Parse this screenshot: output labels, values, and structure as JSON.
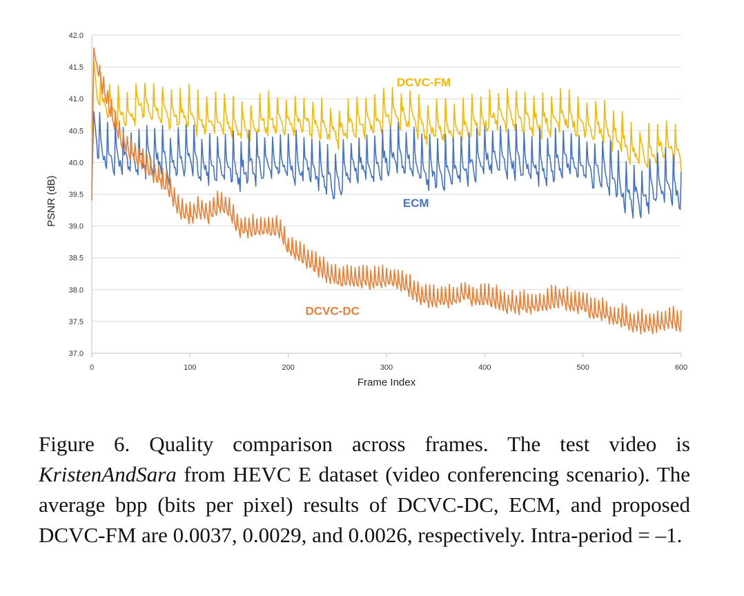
{
  "chart_data": {
    "type": "line",
    "title": "",
    "xlabel": "Frame Index",
    "ylabel": "PSNR (dB)",
    "xlim": [
      0,
      600
    ],
    "ylim": [
      37.0,
      42.0
    ],
    "xticks": [
      0,
      100,
      200,
      300,
      400,
      500,
      600
    ],
    "yticks": [
      "37.0",
      "37.5",
      "38.0",
      "38.5",
      "39.0",
      "39.5",
      "40.0",
      "40.5",
      "41.0",
      "41.5",
      "42.0"
    ],
    "grid": "horizontal",
    "legend": "none (inline series labels)",
    "series": [
      {
        "name": "DCVC-FM",
        "color": "#F5B800",
        "x": [
          0,
          2,
          5,
          10,
          20,
          30,
          40,
          50,
          60,
          70,
          80,
          90,
          100,
          110,
          120,
          130,
          140,
          150,
          160,
          170,
          180,
          190,
          200,
          210,
          220,
          230,
          240,
          250,
          260,
          270,
          280,
          290,
          300,
          310,
          320,
          330,
          340,
          350,
          360,
          370,
          380,
          390,
          400,
          410,
          420,
          430,
          440,
          450,
          460,
          470,
          480,
          490,
          500,
          510,
          520,
          530,
          540,
          550,
          560,
          570,
          580,
          590,
          600
        ],
        "y": [
          40.5,
          41.6,
          41.1,
          40.9,
          40.8,
          40.7,
          40.7,
          40.9,
          40.8,
          40.8,
          40.7,
          40.7,
          40.7,
          40.6,
          40.6,
          40.6,
          40.6,
          40.5,
          40.5,
          40.6,
          40.6,
          40.6,
          40.6,
          40.6,
          40.6,
          40.5,
          40.5,
          40.4,
          40.5,
          40.6,
          40.6,
          40.6,
          40.7,
          40.7,
          40.7,
          40.6,
          40.5,
          40.5,
          40.5,
          40.5,
          40.5,
          40.6,
          40.6,
          40.7,
          40.7,
          40.7,
          40.6,
          40.6,
          40.6,
          40.6,
          40.7,
          40.6,
          40.6,
          40.5,
          40.5,
          40.4,
          40.3,
          40.1,
          40.1,
          40.1,
          40.2,
          40.2,
          40.0
        ],
        "oscillation_amplitude_db": 0.45,
        "period_frames": 9
      },
      {
        "name": "ECM",
        "color": "#4472C4",
        "x": [
          0,
          2,
          5,
          10,
          20,
          30,
          40,
          50,
          60,
          70,
          80,
          90,
          100,
          110,
          120,
          130,
          140,
          150,
          160,
          170,
          180,
          190,
          200,
          210,
          220,
          230,
          240,
          250,
          260,
          270,
          280,
          290,
          300,
          310,
          320,
          330,
          340,
          350,
          360,
          370,
          380,
          390,
          400,
          410,
          420,
          430,
          440,
          450,
          460,
          470,
          480,
          490,
          500,
          510,
          520,
          530,
          540,
          550,
          560,
          570,
          580,
          590,
          600
        ],
        "y": [
          39.6,
          40.8,
          40.3,
          40.1,
          40.0,
          40.0,
          40.0,
          40.0,
          40.0,
          40.0,
          39.9,
          40.0,
          40.0,
          39.9,
          39.9,
          39.9,
          39.9,
          39.8,
          39.9,
          39.9,
          39.9,
          40.0,
          39.9,
          39.9,
          39.9,
          39.8,
          39.7,
          39.6,
          39.8,
          39.9,
          39.9,
          39.9,
          40.0,
          40.0,
          40.0,
          39.9,
          39.8,
          39.8,
          39.8,
          39.8,
          39.9,
          39.9,
          40.0,
          40.0,
          40.0,
          40.0,
          39.9,
          39.9,
          39.9,
          39.9,
          40.0,
          39.9,
          39.9,
          39.8,
          39.8,
          39.7,
          39.5,
          39.4,
          39.4,
          39.5,
          39.6,
          39.6,
          39.4
        ],
        "oscillation_amplitude_db": 0.55,
        "period_frames": 8
      },
      {
        "name": "DCVC-DC",
        "color": "#ED7D31",
        "x": [
          0,
          2,
          5,
          10,
          20,
          30,
          40,
          50,
          60,
          70,
          80,
          90,
          100,
          110,
          120,
          130,
          140,
          150,
          160,
          170,
          180,
          190,
          200,
          210,
          220,
          230,
          240,
          250,
          260,
          270,
          280,
          290,
          300,
          310,
          320,
          330,
          340,
          350,
          360,
          370,
          380,
          390,
          400,
          410,
          420,
          430,
          440,
          450,
          460,
          470,
          480,
          490,
          500,
          510,
          520,
          530,
          540,
          550,
          560,
          570,
          580,
          590,
          600
        ],
        "y": [
          39.4,
          41.8,
          41.5,
          41.2,
          40.7,
          40.3,
          40.1,
          40.0,
          39.8,
          39.7,
          39.5,
          39.2,
          39.1,
          39.2,
          39.1,
          39.3,
          39.2,
          38.9,
          38.9,
          38.9,
          38.9,
          38.9,
          38.6,
          38.5,
          38.4,
          38.3,
          38.2,
          38.1,
          38.1,
          38.1,
          38.1,
          38.1,
          38.1,
          38.1,
          38.0,
          37.9,
          37.8,
          37.8,
          37.8,
          37.8,
          37.9,
          37.8,
          37.8,
          37.8,
          37.7,
          37.7,
          37.7,
          37.7,
          37.7,
          37.8,
          37.8,
          37.7,
          37.7,
          37.6,
          37.6,
          37.5,
          37.5,
          37.4,
          37.4,
          37.4,
          37.4,
          37.5,
          37.4
        ],
        "oscillation_amplitude_db": 0.25,
        "period_frames": 4
      }
    ],
    "annotations": [
      {
        "text": "DCVC-FM",
        "series": "DCVC-FM"
      },
      {
        "text": "ECM",
        "series": "ECM"
      },
      {
        "text": "DCVC-DC",
        "series": "DCVC-DC"
      }
    ]
  },
  "caption": {
    "part1": "Figure 6.  Quality comparison across frames.  The test video is ",
    "emph": "KristenAndSara",
    "part2": " from HEVC E dataset (video conferencing scenario).  The average bpp (bits per pixel) results of DCVC-DC, ECM, and proposed DCVC-FM are 0.0037, 0.0029, and 0.0026, respectively. Intra-period = –1."
  }
}
